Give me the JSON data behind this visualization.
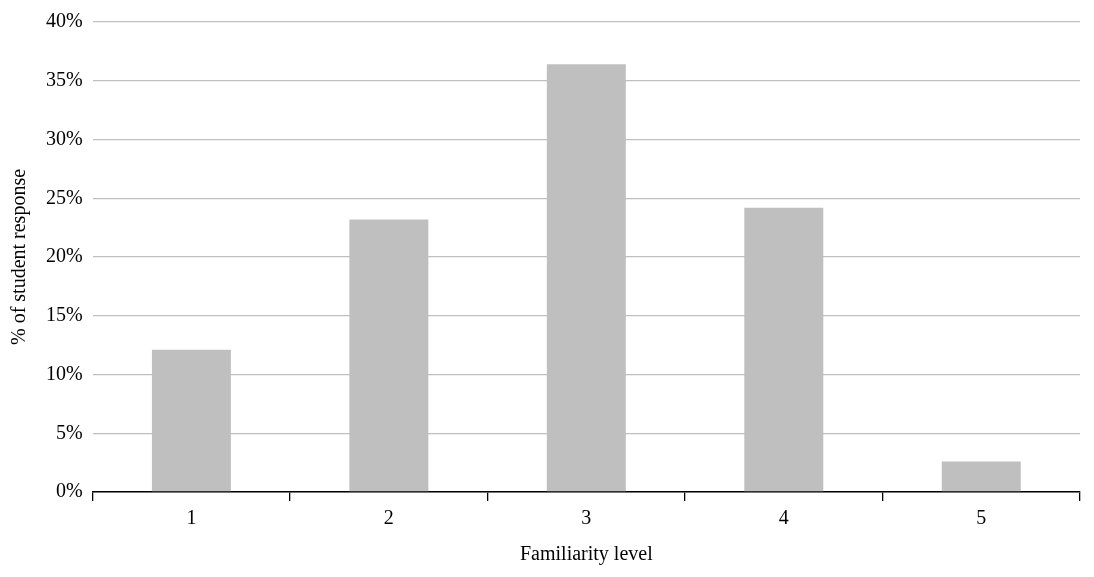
{
  "chart_data": {
    "type": "bar",
    "xlabel": "Familiarity level",
    "ylabel": "% of student response",
    "categories": [
      "1",
      "2",
      "3",
      "4",
      "5"
    ],
    "values": [
      12.1,
      23.2,
      36.4,
      24.2,
      2.6
    ],
    "color": "#bfbfbf",
    "ylim": [
      0,
      40
    ],
    "yticks": [
      {
        "value": 0,
        "label": "0%"
      },
      {
        "value": 5,
        "label": "5%"
      },
      {
        "value": 10,
        "label": "10%"
      },
      {
        "value": 15,
        "label": "15%"
      },
      {
        "value": 20,
        "label": "20%"
      },
      {
        "value": 25,
        "label": "25%"
      },
      {
        "value": 30,
        "label": "30%"
      },
      {
        "value": 35,
        "label": "35%"
      },
      {
        "value": 40,
        "label": "40%"
      }
    ],
    "grid": "y",
    "legend": false
  }
}
